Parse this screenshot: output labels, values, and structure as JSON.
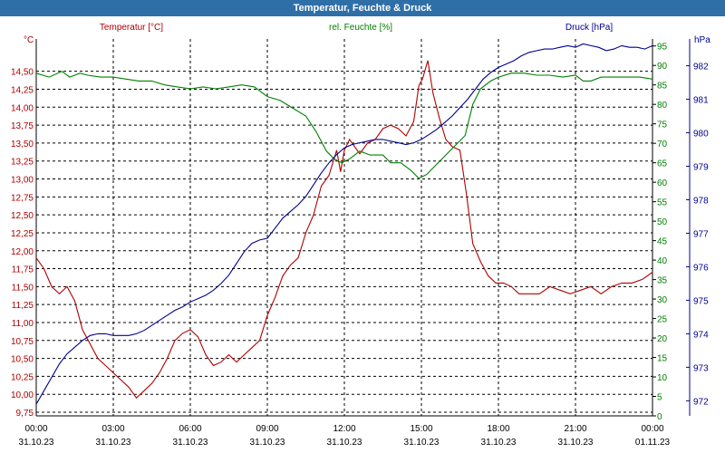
{
  "window": {
    "title": "Temperatur, Feuchte & Druck"
  },
  "chart_data": {
    "type": "line",
    "title": "Temperatur, Feuchte & Druck",
    "x_axis": {
      "tick_times": [
        "00:00",
        "03:00",
        "06:00",
        "09:00",
        "12:00",
        "15:00",
        "18:00",
        "21:00",
        "00:00"
      ],
      "tick_dates": [
        "31.10.23",
        "31.10.23",
        "31.10.23",
        "31.10.23",
        "31.10.23",
        "31.10.23",
        "31.10.23",
        "31.10.23",
        "01.11.23"
      ],
      "range_hours": [
        0,
        24
      ]
    },
    "axes": {
      "temperature": {
        "label": "Temperatur [°C]",
        "unit": "°C",
        "ylim": [
          9.7,
          14.95
        ],
        "ticks": [
          "9,75",
          "10,00",
          "10,25",
          "10,50",
          "10,75",
          "11,00",
          "11,25",
          "11,50",
          "11,75",
          "12,00",
          "12,25",
          "12,50",
          "12,75",
          "13,00",
          "13,25",
          "13,50",
          "13,75",
          "14,00",
          "14,25",
          "14,50"
        ],
        "color": "#b00000"
      },
      "humidity": {
        "label": "rel. Feuchte [%]",
        "unit": "%",
        "ylim": [
          0,
          96.8
        ],
        "ticks": [
          "0",
          "5",
          "10",
          "15",
          "20",
          "25",
          "30",
          "35",
          "40",
          "45",
          "50",
          "55",
          "60",
          "65",
          "70",
          "75",
          "80",
          "85",
          "90",
          "95"
        ],
        "color": "#008000"
      },
      "pressure": {
        "label": "Druck [hPa]",
        "unit": "hPa",
        "ylim": [
          971.55,
          982.8
        ],
        "ticks": [
          "972",
          "973",
          "974",
          "975",
          "976",
          "977",
          "978",
          "979",
          "980",
          "981",
          "982"
        ],
        "color": "#000090"
      }
    },
    "series": [
      {
        "name": "Temperatur [°C]",
        "axis": "temperature",
        "color": "#b00000",
        "points": [
          [
            0,
            11.9
          ],
          [
            0.3,
            11.75
          ],
          [
            0.6,
            11.5
          ],
          [
            0.9,
            11.4
          ],
          [
            1.2,
            11.5
          ],
          [
            1.5,
            11.3
          ],
          [
            1.8,
            10.9
          ],
          [
            2.1,
            10.7
          ],
          [
            2.4,
            10.5
          ],
          [
            2.7,
            10.4
          ],
          [
            3.0,
            10.3
          ],
          [
            3.3,
            10.2
          ],
          [
            3.6,
            10.1
          ],
          [
            3.9,
            9.95
          ],
          [
            4.2,
            10.05
          ],
          [
            4.5,
            10.15
          ],
          [
            4.8,
            10.3
          ],
          [
            5.1,
            10.5
          ],
          [
            5.4,
            10.75
          ],
          [
            5.7,
            10.85
          ],
          [
            6.0,
            10.9
          ],
          [
            6.3,
            10.8
          ],
          [
            6.6,
            10.55
          ],
          [
            6.9,
            10.4
          ],
          [
            7.2,
            10.45
          ],
          [
            7.5,
            10.55
          ],
          [
            7.8,
            10.45
          ],
          [
            8.1,
            10.55
          ],
          [
            8.4,
            10.65
          ],
          [
            8.7,
            10.75
          ],
          [
            9.0,
            11.1
          ],
          [
            9.3,
            11.35
          ],
          [
            9.6,
            11.65
          ],
          [
            9.9,
            11.8
          ],
          [
            10.2,
            11.9
          ],
          [
            10.5,
            12.25
          ],
          [
            10.8,
            12.5
          ],
          [
            11.1,
            12.9
          ],
          [
            11.4,
            13.05
          ],
          [
            11.7,
            13.4
          ],
          [
            11.85,
            13.1
          ],
          [
            12.0,
            13.4
          ],
          [
            12.2,
            13.55
          ],
          [
            12.4,
            13.45
          ],
          [
            12.6,
            13.35
          ],
          [
            12.9,
            13.5
          ],
          [
            13.2,
            13.55
          ],
          [
            13.5,
            13.7
          ],
          [
            13.8,
            13.75
          ],
          [
            14.1,
            13.7
          ],
          [
            14.4,
            13.6
          ],
          [
            14.7,
            13.8
          ],
          [
            14.9,
            14.3
          ],
          [
            15.05,
            14.4
          ],
          [
            15.25,
            14.65
          ],
          [
            15.45,
            14.2
          ],
          [
            15.7,
            13.85
          ],
          [
            15.95,
            13.55
          ],
          [
            16.2,
            13.45
          ],
          [
            16.5,
            13.4
          ],
          [
            16.75,
            12.8
          ],
          [
            17.0,
            12.1
          ],
          [
            17.3,
            11.85
          ],
          [
            17.6,
            11.65
          ],
          [
            17.9,
            11.55
          ],
          [
            18.2,
            11.55
          ],
          [
            18.5,
            11.5
          ],
          [
            18.8,
            11.4
          ],
          [
            19.2,
            11.4
          ],
          [
            19.6,
            11.4
          ],
          [
            20.0,
            11.5
          ],
          [
            20.4,
            11.45
          ],
          [
            20.8,
            11.4
          ],
          [
            21.2,
            11.45
          ],
          [
            21.6,
            11.5
          ],
          [
            22.0,
            11.4
          ],
          [
            22.4,
            11.5
          ],
          [
            22.8,
            11.55
          ],
          [
            23.2,
            11.55
          ],
          [
            23.6,
            11.6
          ],
          [
            24.0,
            11.7
          ]
        ]
      },
      {
        "name": "rel. Feuchte [%]",
        "axis": "humidity",
        "color": "#008000",
        "points": [
          [
            0,
            88
          ],
          [
            0.5,
            87
          ],
          [
            1.0,
            88.5
          ],
          [
            1.3,
            87
          ],
          [
            1.7,
            88
          ],
          [
            2.0,
            87.5
          ],
          [
            2.5,
            87
          ],
          [
            3.0,
            87
          ],
          [
            3.5,
            86.5
          ],
          [
            4.0,
            86
          ],
          [
            4.5,
            86
          ],
          [
            5.0,
            85
          ],
          [
            5.5,
            84.5
          ],
          [
            6.0,
            84
          ],
          [
            6.5,
            84.5
          ],
          [
            7.0,
            84
          ],
          [
            7.5,
            84.5
          ],
          [
            8.0,
            85
          ],
          [
            8.5,
            84.5
          ],
          [
            9.0,
            82
          ],
          [
            9.5,
            81
          ],
          [
            10.0,
            79
          ],
          [
            10.5,
            77
          ],
          [
            10.9,
            73
          ],
          [
            11.3,
            68
          ],
          [
            11.6,
            66
          ],
          [
            11.9,
            65
          ],
          [
            12.2,
            66
          ],
          [
            12.6,
            68
          ],
          [
            13.0,
            67
          ],
          [
            13.5,
            67
          ],
          [
            13.8,
            65
          ],
          [
            14.2,
            65
          ],
          [
            14.6,
            63
          ],
          [
            14.9,
            61
          ],
          [
            15.2,
            62
          ],
          [
            15.5,
            64
          ],
          [
            15.8,
            66
          ],
          [
            16.1,
            68
          ],
          [
            16.4,
            70
          ],
          [
            16.7,
            72
          ],
          [
            17.0,
            80
          ],
          [
            17.3,
            84
          ],
          [
            17.7,
            86
          ],
          [
            18.0,
            87
          ],
          [
            18.5,
            88
          ],
          [
            19.0,
            88
          ],
          [
            19.5,
            87.5
          ],
          [
            20.0,
            87.5
          ],
          [
            20.5,
            87
          ],
          [
            21.0,
            87.5
          ],
          [
            21.3,
            86
          ],
          [
            21.6,
            86
          ],
          [
            22.0,
            87
          ],
          [
            22.5,
            87
          ],
          [
            23.0,
            87
          ],
          [
            23.5,
            87
          ],
          [
            24.0,
            86.5
          ]
        ]
      },
      {
        "name": "Druck [hPa]",
        "axis": "pressure",
        "color": "#000090",
        "points": [
          [
            0,
            971.9
          ],
          [
            0.3,
            972.3
          ],
          [
            0.6,
            972.7
          ],
          [
            0.9,
            973.1
          ],
          [
            1.2,
            973.4
          ],
          [
            1.5,
            973.6
          ],
          [
            1.8,
            973.8
          ],
          [
            2.1,
            973.95
          ],
          [
            2.4,
            974.0
          ],
          [
            2.7,
            974.0
          ],
          [
            3.0,
            973.95
          ],
          [
            3.3,
            973.95
          ],
          [
            3.6,
            973.95
          ],
          [
            3.9,
            974.0
          ],
          [
            4.2,
            974.1
          ],
          [
            4.5,
            974.25
          ],
          [
            4.8,
            974.4
          ],
          [
            5.1,
            974.55
          ],
          [
            5.4,
            974.7
          ],
          [
            5.7,
            974.8
          ],
          [
            6.0,
            974.95
          ],
          [
            6.3,
            975.05
          ],
          [
            6.6,
            975.15
          ],
          [
            6.9,
            975.3
          ],
          [
            7.2,
            975.5
          ],
          [
            7.5,
            975.75
          ],
          [
            7.8,
            976.1
          ],
          [
            8.1,
            976.45
          ],
          [
            8.4,
            976.7
          ],
          [
            8.7,
            976.8
          ],
          [
            9.0,
            976.85
          ],
          [
            9.3,
            977.15
          ],
          [
            9.6,
            977.45
          ],
          [
            9.9,
            977.65
          ],
          [
            10.2,
            977.85
          ],
          [
            10.5,
            978.1
          ],
          [
            10.8,
            978.45
          ],
          [
            11.1,
            978.8
          ],
          [
            11.4,
            979.1
          ],
          [
            11.7,
            979.35
          ],
          [
            12.0,
            979.55
          ],
          [
            12.3,
            979.65
          ],
          [
            12.6,
            979.7
          ],
          [
            12.9,
            979.75
          ],
          [
            13.2,
            979.8
          ],
          [
            13.5,
            979.8
          ],
          [
            13.8,
            979.75
          ],
          [
            14.1,
            979.7
          ],
          [
            14.4,
            979.65
          ],
          [
            14.7,
            979.7
          ],
          [
            15.0,
            979.8
          ],
          [
            15.3,
            979.95
          ],
          [
            15.6,
            980.1
          ],
          [
            15.9,
            980.3
          ],
          [
            16.2,
            980.5
          ],
          [
            16.5,
            980.75
          ],
          [
            16.8,
            981.0
          ],
          [
            17.1,
            981.3
          ],
          [
            17.4,
            981.6
          ],
          [
            17.7,
            981.8
          ],
          [
            18.0,
            981.95
          ],
          [
            18.3,
            982.05
          ],
          [
            18.6,
            982.15
          ],
          [
            18.9,
            982.3
          ],
          [
            19.2,
            982.4
          ],
          [
            19.5,
            982.45
          ],
          [
            19.8,
            982.5
          ],
          [
            20.1,
            982.5
          ],
          [
            20.4,
            982.55
          ],
          [
            20.7,
            982.6
          ],
          [
            21.0,
            982.55
          ],
          [
            21.3,
            982.65
          ],
          [
            21.6,
            982.6
          ],
          [
            21.9,
            982.55
          ],
          [
            22.2,
            982.45
          ],
          [
            22.5,
            982.5
          ],
          [
            22.8,
            982.6
          ],
          [
            23.1,
            982.55
          ],
          [
            23.4,
            982.55
          ],
          [
            23.7,
            982.5
          ],
          [
            24.0,
            982.6
          ]
        ]
      }
    ],
    "grid": true
  }
}
